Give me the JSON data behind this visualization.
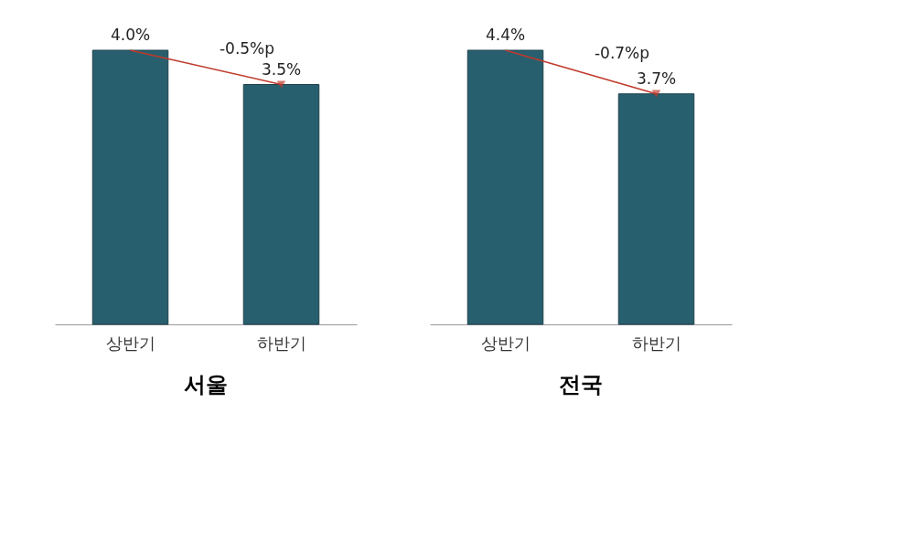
{
  "chart_data": [
    {
      "type": "bar",
      "title": "서울",
      "categories": [
        "상반기",
        "하반기"
      ],
      "values": [
        4.0,
        3.5
      ],
      "value_labels": [
        "4.0%",
        "3.5%"
      ],
      "color": "#285f6e",
      "annotations": [
        "-0.5%p"
      ],
      "tick_labels": "x",
      "grid": false
    },
    {
      "type": "bar",
      "title": "전국",
      "categories": [
        "상반기",
        "하반기"
      ],
      "values": [
        4.4,
        3.7
      ],
      "value_labels": [
        "4.4%",
        "3.7%"
      ],
      "color": "#285f6e",
      "annotations": [
        "-0.7%p"
      ],
      "tick_labels": "x",
      "grid": false
    }
  ]
}
